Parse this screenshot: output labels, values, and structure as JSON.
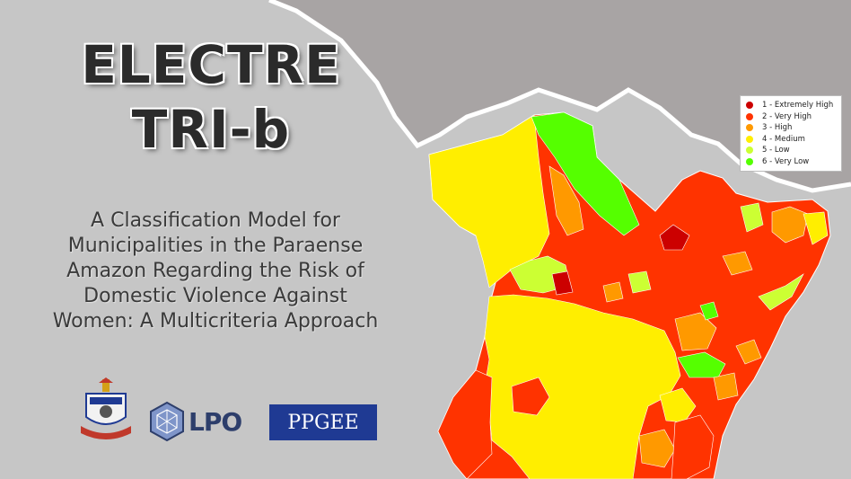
{
  "title": {
    "line1": "ELECTRE",
    "line2": "TRI-b"
  },
  "subtitle": [
    "A Classification Model for",
    "Municipalities in the Paraense",
    "Amazon Regarding the Risk of",
    "Domestic Violence Against",
    "Women: A Multicriteria Approach"
  ],
  "legend": [
    {
      "label": "1 - Extremely High",
      "color": "#cc0000"
    },
    {
      "label": "2 - Very High",
      "color": "#ff3300"
    },
    {
      "label": "3 - High",
      "color": "#ff9900"
    },
    {
      "label": "4 - Medium",
      "color": "#ffee00"
    },
    {
      "label": "5 - Low",
      "color": "#ccff33"
    },
    {
      "label": "6 - Very Low",
      "color": "#55ff00"
    }
  ],
  "logos": {
    "lpo": "LPO",
    "ppgee": "PPGEE"
  },
  "colors": {
    "background": "#c6c6c6",
    "neighbor_country": "#a8a4a4",
    "border": "#ffffff"
  }
}
